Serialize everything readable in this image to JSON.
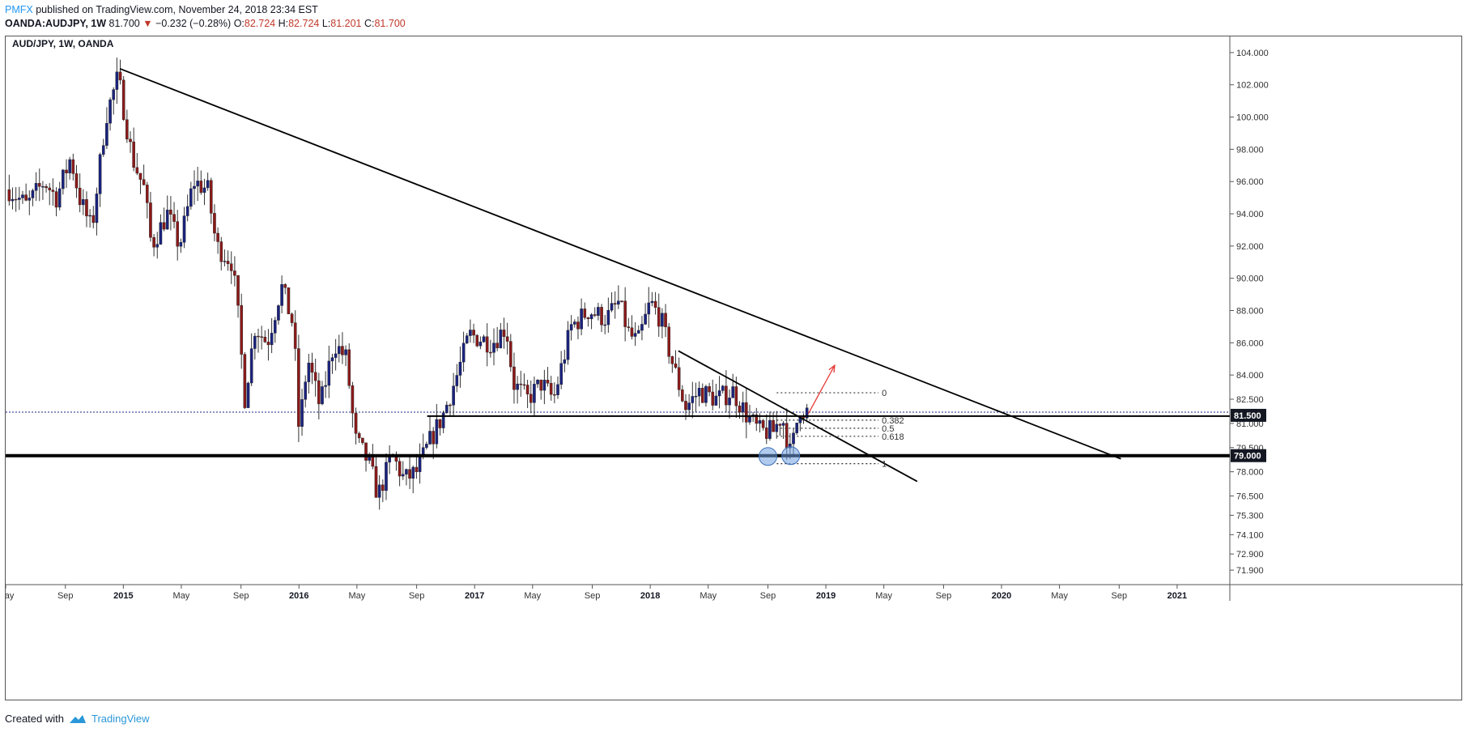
{
  "header": {
    "publisher": "PMFX",
    "published_text": "published on TradingView.com, November 24, 2018 23:34 EST",
    "symbol": "OANDA:AUDJPY, 1W",
    "last": "81.700",
    "change_arrow": "▼",
    "change": "−0.232 (−0.28%)",
    "o_label": "O:",
    "o_value": "82.724",
    "h_label": "H:",
    "h_value": "82.724",
    "l_label": "L:",
    "l_value": "81.201",
    "c_label": "C:",
    "c_value": "81.700"
  },
  "footer": {
    "created_with": "Created with",
    "brand": "TradingView",
    "logo_icon": "tradingview-logo-icon"
  },
  "colors": {
    "bull": "#1a237e",
    "bear": "#8b1a1a",
    "fib": "#333333",
    "arrow": "#e53935",
    "current_price": "#1a237e",
    "circle": "#6fa0e0"
  },
  "chart_data": {
    "type": "candlestick",
    "title": "AUD/JPY, 1W, OANDA",
    "symbol": "AUDJPY",
    "timeframe": "1W",
    "exchange": "OANDA",
    "x_labels": [
      "May",
      "Sep",
      "2015",
      "May",
      "Sep",
      "2016",
      "May",
      "Sep",
      "2017",
      "May",
      "Sep",
      "2018",
      "May",
      "Sep",
      "2019",
      "May",
      "Sep",
      "2020",
      "May",
      "Sep",
      "2021"
    ],
    "x_label_positions": [
      2014.33,
      2014.67,
      2015.0,
      2015.33,
      2015.67,
      2016.0,
      2016.33,
      2016.67,
      2017.0,
      2017.33,
      2017.67,
      2018.0,
      2018.33,
      2018.67,
      2019.0,
      2019.33,
      2019.67,
      2020.0,
      2020.33,
      2020.67,
      2021.0
    ],
    "bold_x_labels": [
      "2015",
      "2016",
      "2017",
      "2018",
      "2019",
      "2020",
      "2021"
    ],
    "x_range": [
      2014.33,
      2021.3
    ],
    "y_ticks": [
      104.0,
      102.0,
      100.0,
      98.0,
      96.0,
      94.0,
      92.0,
      90.0,
      88.0,
      86.0,
      84.0,
      82.5,
      81.0,
      79.5,
      78.0,
      76.5,
      75.3,
      74.1,
      72.9,
      71.9
    ],
    "y_tick_labels": [
      "104.000",
      "102.000",
      "100.000",
      "98.000",
      "96.000",
      "94.000",
      "92.000",
      "90.000",
      "88.000",
      "86.000",
      "84.000",
      "82.500",
      "81.000",
      "79.500",
      "78.000",
      "76.500",
      "75.300",
      "74.100",
      "72.900",
      "71.900"
    ],
    "y_range": [
      71.0,
      105.0
    ],
    "price_labels": [
      {
        "value": 81.5,
        "text": "81.500"
      },
      {
        "value": 79.0,
        "text": "79.000"
      }
    ],
    "current_price": 81.7,
    "anchors": [
      [
        2014.35,
        95.5
      ],
      [
        2014.45,
        94.5
      ],
      [
        2014.55,
        96.0
      ],
      [
        2014.62,
        95.0
      ],
      [
        2014.7,
        97.5
      ],
      [
        2014.75,
        95.0
      ],
      [
        2014.82,
        93.0
      ],
      [
        2014.9,
        100.0
      ],
      [
        2014.97,
        102.5
      ],
      [
        2015.05,
        97.5
      ],
      [
        2015.12,
        95.5
      ],
      [
        2015.16,
        92.0
      ],
      [
        2015.25,
        94.0
      ],
      [
        2015.32,
        92.0
      ],
      [
        2015.4,
        96.0
      ],
      [
        2015.48,
        95.5
      ],
      [
        2015.53,
        92.0
      ],
      [
        2015.62,
        91.0
      ],
      [
        2015.66,
        87.0
      ],
      [
        2015.69,
        82.5
      ],
      [
        2015.75,
        87.0
      ],
      [
        2015.82,
        86.0
      ],
      [
        2015.9,
        89.5
      ],
      [
        2015.97,
        87.0
      ],
      [
        2016.0,
        80.5
      ],
      [
        2016.05,
        85.0
      ],
      [
        2016.12,
        82.0
      ],
      [
        2016.2,
        86.0
      ],
      [
        2016.27,
        85.0
      ],
      [
        2016.32,
        80.0
      ],
      [
        2016.4,
        78.5
      ],
      [
        2016.45,
        76.5
      ],
      [
        2016.53,
        79.0
      ],
      [
        2016.6,
        77.5
      ],
      [
        2016.67,
        78.0
      ],
      [
        2016.75,
        80.0
      ],
      [
        2016.82,
        81.5
      ],
      [
        2016.9,
        84.0
      ],
      [
        2016.97,
        86.5
      ],
      [
        2017.1,
        86.0
      ],
      [
        2017.18,
        87.0
      ],
      [
        2017.22,
        83.5
      ],
      [
        2017.3,
        82.5
      ],
      [
        2017.38,
        83.5
      ],
      [
        2017.45,
        82.5
      ],
      [
        2017.55,
        87.0
      ],
      [
        2017.65,
        88.0
      ],
      [
        2017.75,
        87.5
      ],
      [
        2017.82,
        88.5
      ],
      [
        2017.88,
        86.5
      ],
      [
        2017.93,
        86.0
      ],
      [
        2018.0,
        88.5
      ],
      [
        2018.06,
        87.5
      ],
      [
        2018.12,
        85.0
      ],
      [
        2018.2,
        82.0
      ],
      [
        2018.28,
        83.0
      ],
      [
        2018.38,
        82.5
      ],
      [
        2018.47,
        83.0
      ],
      [
        2018.55,
        81.5
      ],
      [
        2018.62,
        80.5
      ],
      [
        2018.7,
        80.5
      ],
      [
        2018.75,
        81.5
      ],
      [
        2018.8,
        79.0
      ],
      [
        2018.85,
        82.0
      ],
      [
        2018.9,
        81.7
      ]
    ],
    "trendlines": [
      {
        "name": "major-descending-resistance",
        "from": [
          2014.98,
          103.0
        ],
        "to": [
          2020.68,
          78.8
        ],
        "width": 1.8
      },
      {
        "name": "minor-descending-line",
        "from": [
          2018.16,
          85.5
        ],
        "to": [
          2019.52,
          77.4
        ],
        "width": 1.8
      },
      {
        "name": "horizontal-support-81.5",
        "from": [
          2016.73,
          81.45
        ],
        "to": [
          2021.3,
          81.45
        ],
        "width": 2
      },
      {
        "name": "horizontal-support-79",
        "from": [
          2014.33,
          79.0
        ],
        "to": [
          2021.3,
          79.0
        ],
        "width": 4
      }
    ],
    "fibonacci": {
      "x_from": 2018.72,
      "x_to": 2019.3,
      "levels": [
        {
          "label": "0",
          "value": 82.9
        },
        {
          "label": "0.382",
          "value": 81.2
        },
        {
          "label": "0.5",
          "value": 80.7
        },
        {
          "label": "0.618",
          "value": 80.2
        },
        {
          "label": "1",
          "value": 78.5
        }
      ]
    },
    "highlight_circles": [
      {
        "x": 2018.67,
        "y": 78.95
      },
      {
        "x": 2018.8,
        "y": 79.0
      }
    ],
    "projection_arrow": {
      "from": [
        2018.9,
        81.6
      ],
      "to": [
        2019.05,
        84.6
      ]
    }
  }
}
